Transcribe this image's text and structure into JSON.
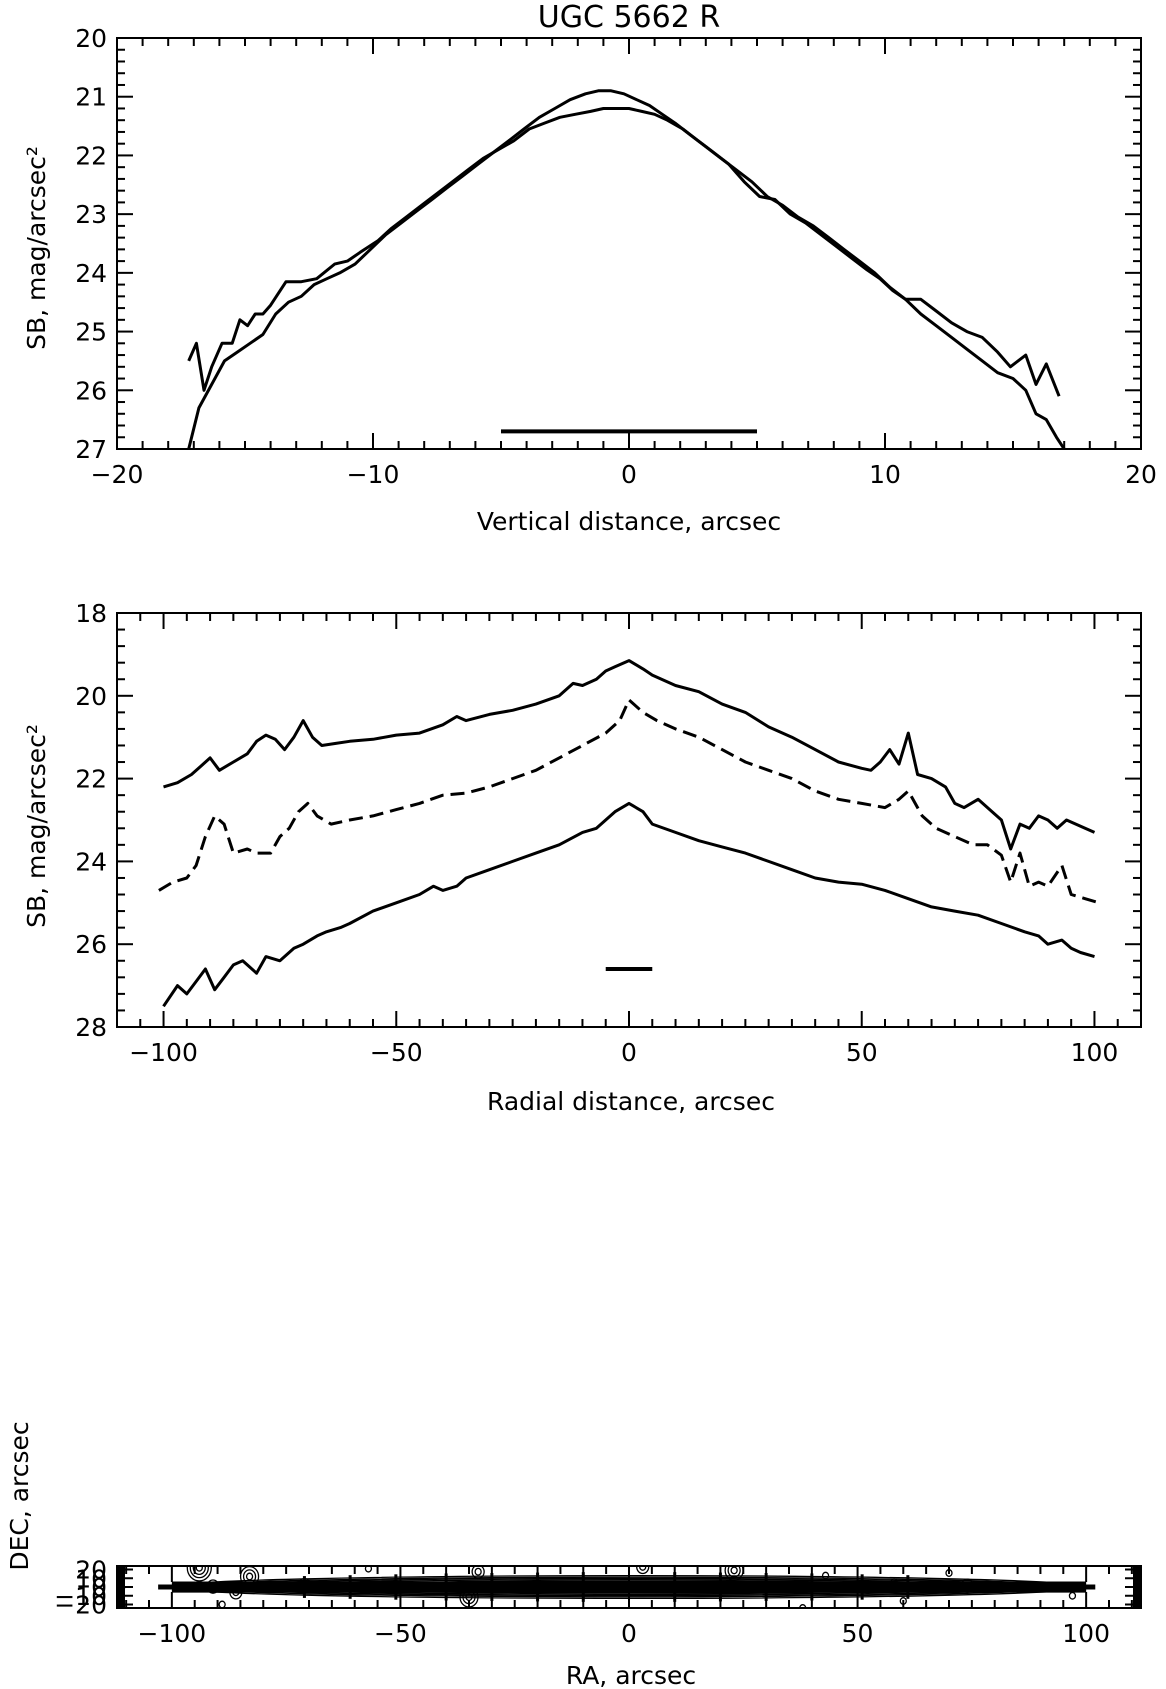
{
  "figure_title": "UGC 5662 R",
  "chart_data": [
    {
      "id": "vertical",
      "type": "line",
      "title": "UGC 5662 R",
      "xlabel": "Vertical distance, arcsec",
      "ylabel": "SB, mag/arcsec²",
      "xlim": [
        -20,
        20
      ],
      "ylim": [
        27,
        20
      ],
      "y_inverted": true,
      "xticks": [
        -20,
        -10,
        0,
        10,
        20
      ],
      "xtick_labels": [
        "−20",
        "−10",
        "0",
        "10",
        "20"
      ],
      "yticks": [
        20,
        21,
        22,
        23,
        24,
        25,
        26,
        27
      ],
      "ytick_labels": [
        "20",
        "21",
        "22",
        "23",
        "24",
        "25",
        "26",
        "27"
      ],
      "grid": false,
      "series": [
        {
          "style": "solid",
          "x": [
            -17.2,
            -16.9,
            -16.6,
            -16.3,
            -15.9,
            -15.5,
            -15.2,
            -14.9,
            -14.6,
            -14.3,
            -14.0,
            -13.4,
            -12.8,
            -12.2,
            -11.5,
            -11.0,
            -10.5,
            -9.8,
            -9.3,
            -8.7,
            -8.1,
            -7.5,
            -6.9,
            -6.3,
            -5.7,
            -5.1,
            -4.5,
            -3.9,
            -3.3,
            -2.7,
            -2.1,
            -1.5,
            -1.0,
            -0.5,
            0.0,
            0.5,
            1.0,
            1.5,
            2.1,
            2.7,
            3.3,
            3.9,
            4.5,
            5.1,
            5.7,
            6.3,
            6.9,
            7.5,
            8.1,
            8.7,
            9.3,
            9.8,
            10.3,
            10.8,
            11.4,
            12.0,
            12.6,
            13.2,
            13.8,
            14.4,
            14.9,
            15.5,
            15.9,
            16.3,
            16.8
          ],
          "y": [
            25.5,
            25.2,
            26.0,
            25.6,
            25.2,
            25.2,
            24.8,
            24.9,
            24.7,
            24.7,
            24.55,
            24.15,
            24.15,
            24.1,
            23.85,
            23.8,
            23.65,
            23.45,
            23.25,
            23.05,
            22.85,
            22.65,
            22.45,
            22.25,
            22.05,
            21.9,
            21.75,
            21.55,
            21.45,
            21.35,
            21.3,
            21.25,
            21.2,
            21.2,
            21.2,
            21.25,
            21.3,
            21.4,
            21.55,
            21.75,
            21.95,
            22.15,
            22.45,
            22.7,
            22.75,
            23.0,
            23.15,
            23.35,
            23.55,
            23.75,
            23.95,
            24.1,
            24.3,
            24.45,
            24.45,
            24.65,
            24.85,
            25.0,
            25.1,
            25.35,
            25.6,
            25.4,
            25.9,
            25.55,
            26.1
          ]
        },
        {
          "style": "solid",
          "x": [
            -17.2,
            -16.8,
            -16.3,
            -15.8,
            -15.3,
            -14.8,
            -14.3,
            -13.8,
            -13.3,
            -12.8,
            -12.3,
            -11.8,
            -11.3,
            -10.7,
            -10.1,
            -9.5,
            -8.9,
            -8.3,
            -7.7,
            -7.1,
            -6.5,
            -5.9,
            -5.3,
            -4.7,
            -4.1,
            -3.5,
            -2.9,
            -2.3,
            -1.7,
            -1.2,
            -0.7,
            -0.2,
            0.3,
            0.8,
            1.3,
            1.8,
            2.4,
            3.0,
            3.6,
            4.2,
            4.8,
            5.4,
            6.0,
            6.6,
            7.2,
            7.8,
            8.4,
            9.0,
            9.6,
            10.2,
            10.8,
            11.4,
            12.0,
            12.6,
            13.2,
            13.8,
            14.4,
            15.0,
            15.5,
            15.9,
            16.3,
            16.7,
            17.0
          ],
          "y": [
            27.0,
            26.3,
            25.9,
            25.5,
            25.35,
            25.2,
            25.05,
            24.7,
            24.5,
            24.4,
            24.2,
            24.1,
            24.0,
            23.85,
            23.6,
            23.35,
            23.15,
            22.95,
            22.75,
            22.55,
            22.35,
            22.15,
            21.95,
            21.75,
            21.55,
            21.35,
            21.2,
            21.05,
            20.95,
            20.9,
            20.9,
            20.95,
            21.05,
            21.15,
            21.3,
            21.45,
            21.65,
            21.85,
            22.05,
            22.25,
            22.45,
            22.7,
            22.85,
            23.05,
            23.2,
            23.4,
            23.6,
            23.8,
            24.0,
            24.25,
            24.45,
            24.7,
            24.9,
            25.1,
            25.3,
            25.5,
            25.7,
            25.8,
            26.0,
            26.4,
            26.5,
            26.8,
            27.0
          ]
        }
      ],
      "scale_bar": {
        "x": [
          -5,
          5
        ],
        "y": 26.7
      }
    },
    {
      "id": "radial",
      "type": "line",
      "xlabel": "Radial distance, arcsec",
      "ylabel": "SB, mag/arcsec²",
      "xlim": [
        -110,
        110
      ],
      "ylim": [
        28,
        18
      ],
      "y_inverted": true,
      "xticks": [
        -100,
        -50,
        0,
        50,
        100
      ],
      "xtick_labels": [
        "−100",
        "−50",
        "0",
        "50",
        "100"
      ],
      "yticks": [
        18,
        20,
        22,
        24,
        26,
        28
      ],
      "ytick_labels": [
        "18",
        "20",
        "22",
        "24",
        "26",
        "28"
      ],
      "grid": false,
      "series": [
        {
          "style": "solid",
          "x": [
            -100,
            -97,
            -94,
            -92,
            -90,
            -88,
            -85,
            -82,
            -80,
            -78,
            -76,
            -74,
            -72,
            -70,
            -68,
            -66,
            -63,
            -60,
            -55,
            -50,
            -45,
            -40,
            -37,
            -35,
            -30,
            -25,
            -20,
            -15,
            -12,
            -10,
            -7,
            -5,
            -3,
            0,
            3,
            5,
            10,
            15,
            20,
            25,
            30,
            35,
            40,
            45,
            50,
            52,
            54,
            56,
            58,
            60,
            62,
            65,
            68,
            70,
            72,
            75,
            78,
            80,
            82,
            84,
            86,
            88,
            90,
            92,
            94,
            96,
            98,
            100
          ],
          "y": [
            22.2,
            22.1,
            21.9,
            21.7,
            21.5,
            21.8,
            21.6,
            21.4,
            21.1,
            20.95,
            21.05,
            21.3,
            21.0,
            20.6,
            21.0,
            21.2,
            21.15,
            21.1,
            21.05,
            20.95,
            20.9,
            20.7,
            20.5,
            20.6,
            20.45,
            20.35,
            20.2,
            20.0,
            19.7,
            19.75,
            19.6,
            19.4,
            19.3,
            19.15,
            19.35,
            19.5,
            19.75,
            19.9,
            20.2,
            20.4,
            20.75,
            21.0,
            21.3,
            21.6,
            21.75,
            21.8,
            21.6,
            21.3,
            21.65,
            20.9,
            21.9,
            22.0,
            22.2,
            22.6,
            22.7,
            22.5,
            22.8,
            23.0,
            23.7,
            23.1,
            23.2,
            22.9,
            23.0,
            23.2,
            23.0,
            23.1,
            23.2,
            23.3
          ]
        },
        {
          "style": "dashed",
          "x": [
            -101,
            -98,
            -95,
            -93,
            -91,
            -89,
            -87,
            -85,
            -82,
            -80,
            -77,
            -75,
            -73,
            -71,
            -69,
            -67,
            -64,
            -60,
            -55,
            -50,
            -45,
            -40,
            -35,
            -30,
            -25,
            -20,
            -15,
            -10,
            -5,
            -2,
            0,
            3,
            6,
            10,
            15,
            20,
            25,
            30,
            35,
            40,
            45,
            50,
            55,
            58,
            60,
            63,
            66,
            70,
            74,
            77,
            80,
            82,
            84,
            86,
            88,
            90,
            93,
            95,
            98,
            101
          ],
          "y": [
            24.7,
            24.5,
            24.4,
            24.1,
            23.4,
            22.9,
            23.1,
            23.8,
            23.7,
            23.8,
            23.8,
            23.4,
            23.2,
            22.8,
            22.6,
            22.9,
            23.1,
            23.0,
            22.9,
            22.75,
            22.6,
            22.4,
            22.35,
            22.2,
            22.0,
            21.8,
            21.5,
            21.2,
            20.9,
            20.6,
            20.1,
            20.4,
            20.6,
            20.8,
            21.0,
            21.3,
            21.6,
            21.8,
            22.0,
            22.3,
            22.5,
            22.6,
            22.7,
            22.5,
            22.3,
            22.9,
            23.2,
            23.4,
            23.6,
            23.6,
            23.85,
            24.5,
            23.8,
            24.6,
            24.5,
            24.6,
            24.1,
            24.8,
            24.9,
            25.0
          ]
        },
        {
          "style": "solid",
          "x": [
            -100,
            -97,
            -95,
            -93,
            -91,
            -89,
            -87,
            -85,
            -83,
            -80,
            -78,
            -75,
            -72,
            -70,
            -67,
            -65,
            -62,
            -60,
            -55,
            -50,
            -45,
            -42,
            -40,
            -37,
            -35,
            -30,
            -25,
            -20,
            -15,
            -10,
            -7,
            -5,
            -3,
            0,
            3,
            5,
            10,
            15,
            20,
            25,
            30,
            35,
            40,
            45,
            50,
            55,
            60,
            65,
            70,
            75,
            80,
            85,
            88,
            90,
            93,
            95,
            97,
            100
          ],
          "y": [
            27.5,
            27.0,
            27.2,
            26.9,
            26.6,
            27.1,
            26.8,
            26.5,
            26.4,
            26.7,
            26.3,
            26.4,
            26.1,
            26.0,
            25.8,
            25.7,
            25.6,
            25.5,
            25.2,
            25.0,
            24.8,
            24.6,
            24.7,
            24.6,
            24.4,
            24.2,
            24.0,
            23.8,
            23.6,
            23.3,
            23.2,
            23.0,
            22.8,
            22.6,
            22.8,
            23.1,
            23.3,
            23.5,
            23.65,
            23.8,
            24.0,
            24.2,
            24.4,
            24.5,
            24.55,
            24.7,
            24.9,
            25.1,
            25.2,
            25.3,
            25.5,
            25.7,
            25.8,
            26.0,
            25.9,
            26.1,
            26.2,
            26.3
          ]
        }
      ],
      "scale_bar": {
        "x": [
          -5,
          5
        ],
        "y": 26.6
      }
    },
    {
      "id": "contour",
      "type": "contour",
      "xlabel": "RA, arcsec",
      "ylabel": "DEC, arcsec",
      "xlim": [
        -112,
        112
      ],
      "ylim": [
        -24,
        24
      ],
      "xticks": [
        -100,
        -50,
        0,
        50,
        100
      ],
      "xtick_labels": [
        "−100",
        "−50",
        "0",
        "50",
        "100"
      ],
      "yticks": [
        -20,
        -10,
        0,
        10,
        20
      ],
      "ytick_labels": [
        "−20",
        "−10",
        "0",
        "10",
        "20"
      ],
      "grid": false,
      "isophote_semi_axes": [
        [
          101,
          13
        ],
        [
          97,
          11.2
        ],
        [
          92,
          9.8
        ],
        [
          85,
          8.4
        ],
        [
          76,
          7.0
        ],
        [
          66,
          5.8
        ],
        [
          55,
          4.6
        ],
        [
          44,
          3.5
        ],
        [
          33,
          2.5
        ],
        [
          22,
          1.6
        ],
        [
          12,
          0.9
        ]
      ],
      "horizontal_cuts": [
        {
          "dec": 3.5,
          "ra": [
            -100,
            100
          ]
        },
        {
          "dec": 0,
          "ra": [
            -103,
            102
          ]
        },
        {
          "dec": -3.5,
          "ra": [
            -100,
            100
          ]
        }
      ],
      "vertical_cuts": [
        {
          "ra": -71,
          "dec": [
            -12.5,
            12.5
          ]
        },
        {
          "ra": -61,
          "dec": [
            -13.5,
            13.5
          ]
        },
        {
          "ra": -51,
          "dec": [
            -14.5,
            14.5
          ]
        },
        {
          "ra": -40,
          "dec": [
            -15.5,
            15.5
          ]
        },
        {
          "ra": -30,
          "dec": [
            -16,
            16
          ]
        },
        {
          "ra": -20,
          "dec": [
            -16.5,
            16.5
          ]
        },
        {
          "ra": -10,
          "dec": [
            -17,
            17
          ]
        },
        {
          "ra": 10,
          "dec": [
            -17,
            17
          ]
        },
        {
          "ra": 20,
          "dec": [
            -16.5,
            16.5
          ]
        },
        {
          "ra": 30,
          "dec": [
            -16,
            16
          ]
        },
        {
          "ra": 40,
          "dec": [
            -15.5,
            15.5
          ]
        },
        {
          "ra": 51,
          "dec": [
            -14.5,
            14.5
          ]
        },
        {
          "ra": 61,
          "dec": [
            -13.5,
            13.5
          ]
        }
      ],
      "field_sources": [
        {
          "ra": -94,
          "dec": 22,
          "rings": 4
        },
        {
          "ra": -83,
          "dec": 12,
          "rings": 3
        },
        {
          "ra": -86,
          "dec": -6,
          "rings": 2
        },
        {
          "ra": -89,
          "dec": -20,
          "rings": 1
        },
        {
          "ra": -71,
          "dec": 2,
          "rings": 2
        },
        {
          "ra": -35,
          "dec": -11.5,
          "rings": 3
        },
        {
          "ra": -33,
          "dec": 17.5,
          "rings": 2
        },
        {
          "ra": -57,
          "dec": 21,
          "rings": 1
        },
        {
          "ra": 3,
          "dec": 23,
          "rings": 2
        },
        {
          "ra": 23,
          "dec": 19,
          "rings": 3
        },
        {
          "ra": 43,
          "dec": 13,
          "rings": 1
        },
        {
          "ra": 70,
          "dec": 16,
          "rings": 1
        },
        {
          "ra": 74,
          "dec": 1.5,
          "rings": 2
        },
        {
          "ra": 58,
          "dec": 5.5,
          "rings": 1
        },
        {
          "ra": -91,
          "dec": 0.5,
          "rings": 2
        },
        {
          "ra": 60,
          "dec": -16,
          "rings": 1
        },
        {
          "ra": 38,
          "dec": -24,
          "rings": 1
        },
        {
          "ra": -111,
          "dec": -1,
          "rings": 1
        },
        {
          "ra": 97,
          "dec": -10,
          "rings": 1
        }
      ]
    }
  ]
}
